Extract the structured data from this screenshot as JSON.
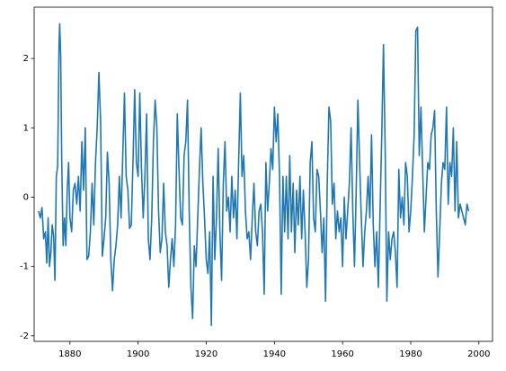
{
  "chart_data": {
    "type": "line",
    "x": [
      1870.8,
      1871.3,
      1871.8,
      1872.3,
      1872.8,
      1873.2,
      1873.6,
      1874,
      1874.4,
      1874.8,
      1875.2,
      1875.6,
      1876,
      1876.4,
      1876.8,
      1877,
      1877.3,
      1877.6,
      1878,
      1878.4,
      1878.8,
      1879.2,
      1879.6,
      1880,
      1880.5,
      1881,
      1881.5,
      1882,
      1882.5,
      1883,
      1883.5,
      1884,
      1884.5,
      1885,
      1885.5,
      1886,
      1886.5,
      1887,
      1887.5,
      1888,
      1888.5,
      1889,
      1889.5,
      1890,
      1890.5,
      1891,
      1891.5,
      1892,
      1892.5,
      1893,
      1893.5,
      1894,
      1894.5,
      1895,
      1895.5,
      1896,
      1896.5,
      1897,
      1897.5,
      1898,
      1898.5,
      1899,
      1899.5,
      1900,
      1900.5,
      1901,
      1901.5,
      1902,
      1902.5,
      1903,
      1903.5,
      1904,
      1904.5,
      1905,
      1905.5,
      1906,
      1906.5,
      1907,
      1907.5,
      1908,
      1908.5,
      1909,
      1909.5,
      1910,
      1910.5,
      1911,
      1911.5,
      1912,
      1912.5,
      1913,
      1913.5,
      1914,
      1914.5,
      1915,
      1915.5,
      1916,
      1916.5,
      1917,
      1917.5,
      1918,
      1918.5,
      1919,
      1919.5,
      1920,
      1920.5,
      1921,
      1921.5,
      1922,
      1922.5,
      1923,
      1923.5,
      1924,
      1924.5,
      1925,
      1925.5,
      1926,
      1926.5,
      1927,
      1927.5,
      1928,
      1928.5,
      1929,
      1929.5,
      1930,
      1930.5,
      1931,
      1931.5,
      1932,
      1932.5,
      1933,
      1933.5,
      1934,
      1934.5,
      1935,
      1935.5,
      1936,
      1936.5,
      1937,
      1937.5,
      1938,
      1938.5,
      1939,
      1939.5,
      1940,
      1940.5,
      1941,
      1941.5,
      1942,
      1942.5,
      1943,
      1943.5,
      1944,
      1944.5,
      1945,
      1945.5,
      1946,
      1946.5,
      1947,
      1947.5,
      1948,
      1948.5,
      1949,
      1949.5,
      1950,
      1950.5,
      1951,
      1951.5,
      1952,
      1952.5,
      1953,
      1953.5,
      1954,
      1954.5,
      1955,
      1955.5,
      1956,
      1956.5,
      1957,
      1957.5,
      1958,
      1958.5,
      1959,
      1959.5,
      1960,
      1960.5,
      1961,
      1961.5,
      1962,
      1962.5,
      1963,
      1963.5,
      1964,
      1964.5,
      1965,
      1965.5,
      1966,
      1966.5,
      1967,
      1967.5,
      1968,
      1968.5,
      1969,
      1969.5,
      1970,
      1970.5,
      1971,
      1971.5,
      1972,
      1972.5,
      1973,
      1973.5,
      1974,
      1974.5,
      1975,
      1975.5,
      1976,
      1976.5,
      1977,
      1977.5,
      1978,
      1978.5,
      1979,
      1979.5,
      1980,
      1980.5,
      1981,
      1981.5,
      1982,
      1982.5,
      1983,
      1983.5,
      1984,
      1984.5,
      1985,
      1985.5,
      1986,
      1986.5,
      1987,
      1987.5,
      1988,
      1988.5,
      1989,
      1989.5,
      1990,
      1990.5,
      1991,
      1991.5,
      1992,
      1992.5,
      1993,
      1993.5,
      1994,
      1994.5,
      1995,
      1995.5,
      1996,
      1996.5,
      1997
    ],
    "series": [
      {
        "color": "#1f77b4",
        "values": [
          -0.2,
          -0.3,
          -0.15,
          -0.6,
          -0.5,
          -0.95,
          -0.3,
          -1.0,
          -0.8,
          -0.4,
          -0.55,
          -1.2,
          0.3,
          0.45,
          2.2,
          2.5,
          2.0,
          0.5,
          -0.7,
          -0.3,
          -0.7,
          0.1,
          0.5,
          -0.3,
          -0.5,
          0.1,
          0.2,
          -0.1,
          0.3,
          -0.2,
          0.8,
          0.1,
          1.0,
          -0.9,
          -0.85,
          -0.5,
          0.2,
          -0.4,
          0.5,
          1.0,
          1.8,
          1.1,
          -0.85,
          -0.6,
          -0.3,
          0.65,
          0.2,
          -0.9,
          -1.35,
          -0.9,
          -0.7,
          -0.4,
          0.3,
          -0.3,
          0.6,
          1.5,
          0.3,
          0.1,
          -0.45,
          -0.4,
          0.5,
          1.55,
          0.5,
          0.3,
          1.5,
          0.4,
          -0.3,
          0.3,
          1.2,
          -0.6,
          -0.9,
          -0.3,
          0.8,
          1.4,
          1.0,
          -0.2,
          -0.8,
          -0.6,
          0.2,
          -0.5,
          -0.7,
          -1.3,
          -0.9,
          -0.6,
          -1.0,
          -0.4,
          1.2,
          0.4,
          -0.3,
          -0.4,
          0.6,
          0.8,
          1.4,
          -0.2,
          -1.3,
          -1.75,
          -0.7,
          -1.0,
          -0.3,
          0.4,
          1.0,
          0.2,
          -0.3,
          -0.9,
          -1.1,
          -0.5,
          -1.85,
          0.3,
          -0.9,
          -0.3,
          0.7,
          -0.5,
          -1.2,
          0.2,
          0.8,
          -0.2,
          0.0,
          -0.5,
          0.3,
          -0.3,
          0.1,
          -0.6,
          0.5,
          1.5,
          0.3,
          0.6,
          -0.2,
          -0.6,
          -0.5,
          -0.9,
          -0.3,
          0.2,
          -0.5,
          -0.7,
          -0.2,
          -0.1,
          -0.5,
          -1.4,
          0.5,
          -0.2,
          0.2,
          0.7,
          0.4,
          1.3,
          0.8,
          1.2,
          0.3,
          -1.4,
          0.3,
          -0.5,
          0.3,
          -0.6,
          0.6,
          -0.5,
          0.2,
          -0.8,
          0.1,
          -0.4,
          0.3,
          -0.6,
          0.1,
          -0.5,
          -1.3,
          -0.9,
          0.5,
          0.8,
          -0.3,
          -0.5,
          0.4,
          0.3,
          -0.2,
          -0.8,
          -0.3,
          -1.5,
          0.2,
          1.3,
          1.1,
          -0.1,
          0.2,
          -0.6,
          -0.2,
          -0.5,
          -0.3,
          -1.0,
          0.0,
          -0.6,
          -0.2,
          0.2,
          1.0,
          -0.2,
          -1.0,
          0.1,
          1.4,
          0.5,
          -0.3,
          -1.0,
          -0.5,
          -0.2,
          0.3,
          -0.3,
          0.9,
          -0.4,
          -1.0,
          -0.5,
          -1.3,
          -0.2,
          0.9,
          2.2,
          0.7,
          -1.5,
          -0.5,
          -0.9,
          -0.6,
          -0.5,
          -0.8,
          -1.3,
          0.4,
          -0.3,
          0.0,
          -0.4,
          0.5,
          0.3,
          -0.5,
          -0.2,
          0.3,
          0.9,
          2.4,
          2.45,
          0.6,
          1.3,
          0.4,
          -0.5,
          0.0,
          0.5,
          0.4,
          0.9,
          1.0,
          1.25,
          -0.2,
          -1.15,
          -0.5,
          0.2,
          0.5,
          0.4,
          1.3,
          -0.1,
          0.5,
          0.3,
          1.0,
          -0.2,
          0.8,
          -0.3,
          -0.1,
          -0.2,
          -0.3,
          -0.4,
          -0.1,
          -0.2
        ]
      }
    ],
    "xlim": [
      1869.5,
      2004
    ],
    "ylim": [
      -2.08,
      2.74
    ],
    "xticks": [
      1880,
      1900,
      1920,
      1940,
      1960,
      1980,
      2000
    ],
    "yticks": [
      -2,
      -1,
      0,
      1,
      2
    ]
  }
}
